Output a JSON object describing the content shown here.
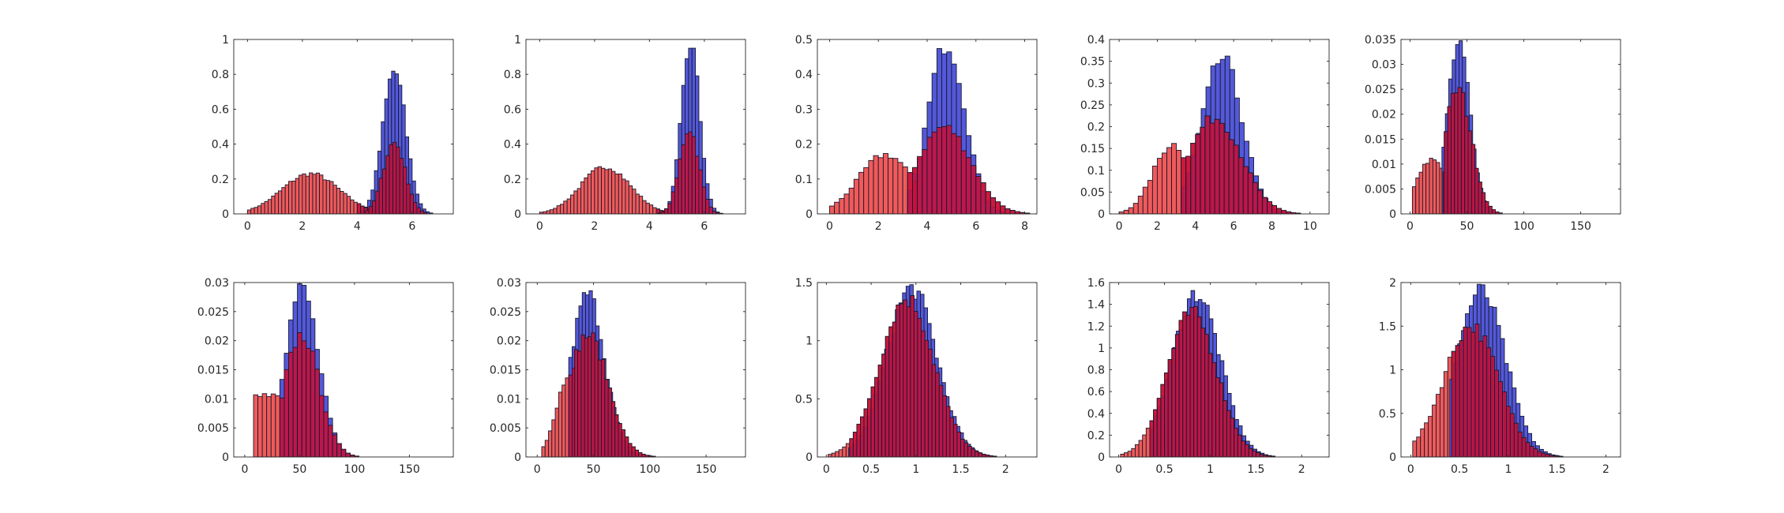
{
  "colors": {
    "blue_fill": "#4a50d8",
    "red_fill": "#f05a5a",
    "overlap_fill": "#c8103a",
    "edge": "#1a1a2e",
    "axis": "#262626"
  },
  "chart_data": [
    {
      "type": "bar",
      "xlim": [
        -0.5,
        7.5
      ],
      "ylim": [
        0,
        1
      ],
      "xticks": [
        0,
        2,
        4,
        6
      ],
      "yticks": [
        0,
        0.2,
        0.4,
        0.6,
        0.8,
        1
      ],
      "xtick_labels": [
        "0",
        "2",
        "4",
        "6"
      ],
      "ytick_labels": [
        "0",
        "0.2",
        "0.4",
        "0.6",
        "0.8",
        "1"
      ],
      "bin_width": 0.125,
      "series": [
        {
          "name": "red",
          "color": "red",
          "shape": "gauss",
          "mean": 2.3,
          "sd": 1.05,
          "peak": 0.23,
          "start": 0,
          "end": 4.6
        },
        {
          "name": "red",
          "color": "red",
          "shape": "gauss",
          "mean": 5.35,
          "sd": 0.4,
          "peak": 0.41,
          "start": 4.3,
          "end": 7.0
        },
        {
          "name": "blue",
          "color": "blue",
          "shape": "gauss",
          "mean": 5.35,
          "sd": 0.42,
          "peak": 0.82,
          "start": 4.0,
          "end": 7.0
        }
      ]
    },
    {
      "type": "bar",
      "xlim": [
        -0.5,
        7.5
      ],
      "ylim": [
        0,
        1
      ],
      "xticks": [
        0,
        2,
        4,
        6
      ],
      "yticks": [
        0,
        0.2,
        0.4,
        0.6,
        0.8,
        1
      ],
      "xtick_labels": [
        "0",
        "2",
        "4",
        "6"
      ],
      "ytick_labels": [
        "0",
        "0.2",
        "0.4",
        "0.6",
        "0.8",
        "1"
      ],
      "bin_width": 0.125,
      "series": [
        {
          "name": "red",
          "color": "red",
          "shape": "gauss",
          "mean": 2.4,
          "sd": 0.9,
          "peak": 0.27,
          "start": 0,
          "end": 4.7
        },
        {
          "name": "red",
          "color": "red",
          "shape": "gauss",
          "mean": 5.45,
          "sd": 0.35,
          "peak": 0.49,
          "start": 4.3,
          "end": 6.8
        },
        {
          "name": "blue",
          "color": "blue",
          "shape": "gauss",
          "mean": 5.5,
          "sd": 0.33,
          "peak": 0.98,
          "start": 4.3,
          "end": 6.8
        }
      ]
    },
    {
      "type": "bar",
      "xlim": [
        -0.5,
        8.5
      ],
      "ylim": [
        0,
        0.5
      ],
      "xticks": [
        0,
        2,
        4,
        6,
        8
      ],
      "yticks": [
        0,
        0.1,
        0.2,
        0.3,
        0.4,
        0.5
      ],
      "xtick_labels": [
        "0",
        "2",
        "4",
        "6",
        "8"
      ],
      "ytick_labels": [
        "0",
        "0.1",
        "0.2",
        "0.3",
        "0.4",
        "0.5"
      ],
      "bin_width": 0.2,
      "series": [
        {
          "name": "red",
          "color": "red",
          "shape": "gauss",
          "mean": 2.3,
          "sd": 1.1,
          "peak": 0.17,
          "start": 0,
          "end": 3.6
        },
        {
          "name": "red",
          "color": "red",
          "shape": "gauss",
          "mean": 4.7,
          "sd": 1.1,
          "peak": 0.25,
          "start": 3.4,
          "end": 8.2
        },
        {
          "name": "blue",
          "color": "blue",
          "shape": "gauss",
          "mean": 4.8,
          "sd": 0.75,
          "peak": 0.49,
          "start": 3.2,
          "end": 8.2
        }
      ]
    },
    {
      "type": "bar",
      "xlim": [
        -0.5,
        11
      ],
      "ylim": [
        0,
        0.4
      ],
      "xticks": [
        0,
        2,
        4,
        6,
        8,
        10
      ],
      "yticks": [
        0,
        0.05,
        0.1,
        0.15,
        0.2,
        0.25,
        0.3,
        0.35,
        0.4
      ],
      "xtick_labels": [
        "0",
        "2",
        "4",
        "6",
        "8",
        "10"
      ],
      "ytick_labels": [
        "0",
        "0.05",
        "0.1",
        "0.15",
        "0.2",
        "0.25",
        "0.3",
        "0.35",
        "0.4"
      ],
      "bin_width": 0.25,
      "series": [
        {
          "name": "red",
          "color": "red",
          "shape": "gauss",
          "mean": 2.8,
          "sd": 1.0,
          "peak": 0.16,
          "start": 0,
          "end": 3.5
        },
        {
          "name": "red",
          "color": "red",
          "shape": "gauss",
          "mean": 5.0,
          "sd": 1.4,
          "peak": 0.22,
          "start": 3.5,
          "end": 10.2
        },
        {
          "name": "blue",
          "color": "blue",
          "shape": "gauss",
          "mean": 5.4,
          "sd": 1.05,
          "peak": 0.355,
          "start": 3.3,
          "end": 10.2
        }
      ]
    },
    {
      "type": "bar",
      "xlim": [
        -8,
        185
      ],
      "ylim": [
        0,
        0.035
      ],
      "xticks": [
        0,
        50,
        100,
        150
      ],
      "yticks": [
        0,
        0.005,
        0.01,
        0.015,
        0.02,
        0.025,
        0.03,
        0.035
      ],
      "xtick_labels": [
        "0",
        "50",
        "100",
        "150"
      ],
      "ytick_labels": [
        "0",
        "0.005",
        "0.01",
        "0.015",
        "0.02",
        "0.025",
        "0.03",
        "0.035"
      ],
      "bin_width": 3,
      "series": [
        {
          "name": "red",
          "color": "red",
          "shape": "gauss",
          "mean": 20,
          "sd": 14,
          "peak": 0.011,
          "start": 2,
          "end": 30
        },
        {
          "name": "red",
          "color": "red",
          "shape": "gauss",
          "mean": 42,
          "sd": 12,
          "peak": 0.025,
          "start": 30,
          "end": 110
        },
        {
          "name": "blue",
          "color": "blue",
          "shape": "gauss",
          "mean": 43,
          "sd": 10,
          "peak": 0.034,
          "start": 28,
          "end": 110
        }
      ]
    },
    {
      "type": "bar",
      "xlim": [
        -10,
        190
      ],
      "ylim": [
        0,
        0.03
      ],
      "xticks": [
        0,
        50,
        100,
        150
      ],
      "yticks": [
        0,
        0.005,
        0.01,
        0.015,
        0.02,
        0.025,
        0.03
      ],
      "xtick_labels": [
        "0",
        "50",
        "100",
        "150"
      ],
      "ytick_labels": [
        "0",
        "0.005",
        "0.01",
        "0.015",
        "0.02",
        "0.025",
        "0.03"
      ],
      "bin_width": 4,
      "series": [
        {
          "name": "red",
          "color": "red",
          "shape": "gauss",
          "mean": 20,
          "sd": 40,
          "peak": 0.0105,
          "start": 8,
          "end": 36
        },
        {
          "name": "red",
          "color": "red",
          "shape": "gauss",
          "mean": 52,
          "sd": 16,
          "peak": 0.021,
          "start": 36,
          "end": 130
        },
        {
          "name": "blue",
          "color": "blue",
          "shape": "gauss",
          "mean": 52,
          "sd": 15,
          "peak": 0.029,
          "start": 32,
          "end": 130
        }
      ]
    },
    {
      "type": "bar",
      "xlim": [
        -10,
        185
      ],
      "ylim": [
        0,
        0.03
      ],
      "xticks": [
        0,
        50,
        100,
        150
      ],
      "yticks": [
        0,
        0.005,
        0.01,
        0.015,
        0.02,
        0.025,
        0.03
      ],
      "xtick_labels": [
        "0",
        "50",
        "100",
        "150"
      ],
      "ytick_labels": [
        "0",
        "0.005",
        "0.01",
        "0.015",
        "0.02",
        "0.025",
        "0.03"
      ],
      "bin_width": 3,
      "series": [
        {
          "name": "red",
          "color": "red",
          "shape": "gauss",
          "mean": 30,
          "sd": 12,
          "peak": 0.015,
          "start": 4,
          "end": 33
        },
        {
          "name": "red",
          "color": "red",
          "shape": "gauss",
          "mean": 45,
          "sd": 18,
          "peak": 0.021,
          "start": 33,
          "end": 140
        },
        {
          "name": "blue",
          "color": "blue",
          "shape": "gauss",
          "mean": 45,
          "sd": 15,
          "peak": 0.028,
          "start": 28,
          "end": 140
        }
      ]
    },
    {
      "type": "bar",
      "xlim": [
        -0.1,
        2.35
      ],
      "ylim": [
        0,
        1.5
      ],
      "xticks": [
        0,
        0.5,
        1,
        1.5,
        2
      ],
      "yticks": [
        0,
        0.5,
        1,
        1.5
      ],
      "xtick_labels": [
        "0",
        "0.5",
        "1",
        "1.5",
        "2"
      ],
      "ytick_labels": [
        "0",
        "0.5",
        "1",
        "1.5"
      ],
      "bin_width": 0.04,
      "series": [
        {
          "name": "red",
          "color": "red",
          "shape": "gauss",
          "mean": 0.9,
          "sd": 0.3,
          "peak": 1.36,
          "start": 0.02,
          "end": 1.95
        },
        {
          "name": "blue",
          "color": "blue",
          "shape": "gauss",
          "mean": 0.95,
          "sd": 0.28,
          "peak": 1.45,
          "start": 0.25,
          "end": 1.95
        }
      ]
    },
    {
      "type": "bar",
      "xlim": [
        -0.1,
        2.3
      ],
      "ylim": [
        0,
        1.6
      ],
      "xticks": [
        0,
        0.5,
        1,
        1.5,
        2
      ],
      "yticks": [
        0,
        0.2,
        0.4,
        0.6,
        0.8,
        1,
        1.2,
        1.4,
        1.6
      ],
      "xtick_labels": [
        "0",
        "0.5",
        "1",
        "1.5",
        "2"
      ],
      "ytick_labels": [
        "0",
        "0.2",
        "0.4",
        "0.6",
        "0.8",
        "1",
        "1.2",
        "1.4",
        "1.6"
      ],
      "bin_width": 0.04,
      "series": [
        {
          "name": "red",
          "color": "red",
          "shape": "gauss",
          "mean": 0.8,
          "sd": 0.27,
          "peak": 1.32,
          "start": 0.02,
          "end": 1.8
        },
        {
          "name": "blue",
          "color": "blue",
          "shape": "gauss",
          "mean": 0.85,
          "sd": 0.26,
          "peak": 1.5,
          "start": 0.35,
          "end": 1.8
        }
      ]
    },
    {
      "type": "bar",
      "xlim": [
        -0.1,
        2.15
      ],
      "ylim": [
        0,
        2
      ],
      "xticks": [
        0,
        0.5,
        1,
        1.5,
        2
      ],
      "yticks": [
        0,
        0.5,
        1,
        1.5,
        2
      ],
      "xtick_labels": [
        "0",
        "0.5",
        "1",
        "1.5",
        "2"
      ],
      "ytick_labels": [
        "0",
        "0.5",
        "1",
        "1.5",
        "2"
      ],
      "bin_width": 0.04,
      "series": [
        {
          "name": "red",
          "color": "red",
          "shape": "gauss",
          "mean": 0.62,
          "sd": 0.28,
          "peak": 1.5,
          "start": 0.02,
          "end": 1.7
        },
        {
          "name": "blue",
          "color": "blue",
          "shape": "gauss",
          "mean": 0.72,
          "sd": 0.25,
          "peak": 1.9,
          "start": 0.4,
          "end": 1.7
        }
      ]
    }
  ]
}
